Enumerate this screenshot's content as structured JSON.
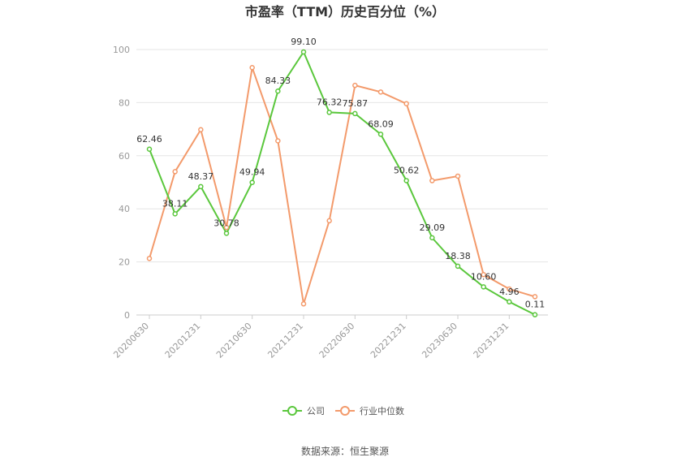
{
  "chart_data": {
    "type": "line",
    "title": "市盈率（TTM）历史百分位（%）",
    "x": [
      "20200630",
      "20200930",
      "20201231",
      "20210331",
      "20210630",
      "20210930",
      "20211231",
      "20220331",
      "20220630",
      "20220930",
      "20221231",
      "20230331",
      "20230630",
      "20230930",
      "20231231",
      "20240331"
    ],
    "x_tick_labels": [
      "20200630",
      "20201231",
      "20210630",
      "20211231",
      "20220630",
      "20221231",
      "20230630",
      "20231231"
    ],
    "ylim": [
      0,
      100
    ],
    "y_ticks": [
      "0",
      "20",
      "40",
      "60",
      "80",
      "100"
    ],
    "grid": true,
    "legend_position": "bottom",
    "series": [
      {
        "name": "公司",
        "color": "#5ac73c",
        "values": [
          62.46,
          38.11,
          48.37,
          30.78,
          49.94,
          84.33,
          99.1,
          76.32,
          75.87,
          68.09,
          50.62,
          29.09,
          18.38,
          10.6,
          4.96,
          0.11
        ],
        "labels": [
          "62.46",
          "38.11",
          "48.37",
          "30.78",
          "49.94",
          "84.33",
          "99.10",
          "76.32",
          "75.87",
          "68.09",
          "50.62",
          "29.09",
          "18.38",
          "10.60",
          "4.96",
          "0.11"
        ]
      },
      {
        "name": "行业中位数",
        "color": "#f39a6b",
        "values": [
          21.3,
          54.0,
          69.8,
          33.0,
          93.2,
          65.6,
          4.2,
          35.5,
          86.5,
          84.0,
          79.6,
          50.6,
          52.3,
          15.2,
          9.8,
          6.9
        ]
      }
    ],
    "source": "数据来源：恒生聚源"
  }
}
